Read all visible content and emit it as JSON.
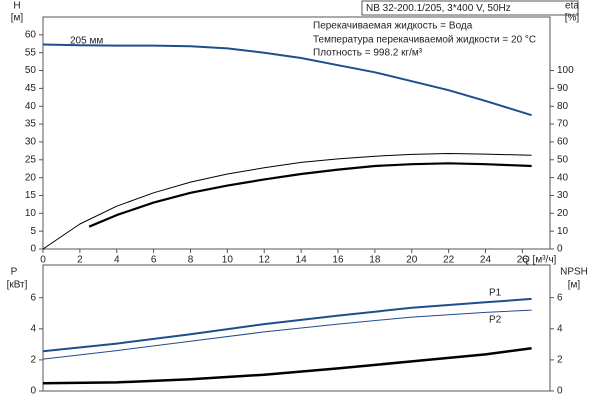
{
  "header": "NB 32-200.1/205, 3*400 V, 50Hz",
  "annotations": [
    "Перекачиваемая жидкость = Вода",
    "Температура перекачиваемой жидкости = 20 °C",
    "Плотность = 998.2 кг/м³"
  ],
  "chart_data": [
    {
      "type": "line",
      "ylabel": "H",
      "yunit": "[м]",
      "y2label": "eta",
      "y2unit": "[%]",
      "xlabel": "Q [м³/ч]",
      "xlim": [
        0,
        27.5
      ],
      "xticks": [
        0,
        2,
        4,
        6,
        8,
        10,
        12,
        14,
        16,
        18,
        20,
        22,
        24,
        26
      ],
      "ylim": [
        0,
        65
      ],
      "yticks": [
        0,
        5,
        10,
        15,
        20,
        25,
        30,
        35,
        40,
        45,
        50,
        55,
        60
      ],
      "y2lim": [
        0,
        130
      ],
      "y2ticks": [
        0,
        10,
        20,
        30,
        40,
        50,
        60,
        70,
        80,
        90,
        100
      ],
      "series": [
        {
          "name": "205 мм",
          "color": "#1f4e8c",
          "width": 2,
          "x": [
            0,
            2,
            4,
            6,
            8,
            10,
            12,
            14,
            16,
            18,
            20,
            22,
            24,
            26.5
          ],
          "values": [
            57.3,
            57.1,
            57,
            57,
            56.8,
            56.2,
            55,
            53.5,
            51.5,
            49.5,
            47,
            44.5,
            41.5,
            37.5
          ]
        },
        {
          "color": "#000000",
          "width": 1,
          "axis": "y2",
          "x": [
            0,
            2,
            4,
            6,
            8,
            10,
            12,
            14,
            16,
            18,
            20,
            22,
            24,
            26.5
          ],
          "values": [
            0,
            14,
            24,
            31.5,
            37.5,
            42,
            45.5,
            48.5,
            50.5,
            52,
            53,
            53.5,
            53.2,
            52.5
          ]
        },
        {
          "color": "#000000",
          "width": 2.2,
          "axis": "y2",
          "x": [
            2.5,
            4,
            6,
            8,
            10,
            12,
            14,
            16,
            18,
            20,
            22,
            24,
            26.5
          ],
          "values": [
            12.5,
            19,
            26,
            31.5,
            35.5,
            39,
            42,
            44.5,
            46.5,
            47.5,
            48,
            47.5,
            46.5
          ]
        }
      ]
    },
    {
      "type": "line",
      "ylabel": "P",
      "yunit": "[кВт]",
      "y2label": "NPSH",
      "y2unit": "[м]",
      "xlim": [
        0,
        27.5
      ],
      "ylim": [
        0,
        8.1
      ],
      "yticks": [
        0,
        2,
        4,
        6
      ],
      "y2lim": [
        0,
        8.1
      ],
      "y2ticks": [
        0,
        2,
        4,
        6
      ],
      "series": [
        {
          "name": "P1",
          "color": "#1f4e8c",
          "width": 2,
          "x": [
            0,
            4,
            8,
            12,
            16,
            20,
            24,
            26.5
          ],
          "values": [
            2.55,
            3.05,
            3.65,
            4.3,
            4.85,
            5.35,
            5.7,
            5.92
          ]
        },
        {
          "name": "P2",
          "color": "#1f4e8c",
          "width": 1,
          "x": [
            0,
            4,
            8,
            12,
            16,
            20,
            24,
            26.5
          ],
          "values": [
            2.05,
            2.6,
            3.2,
            3.8,
            4.3,
            4.75,
            5.05,
            5.2
          ]
        },
        {
          "color": "#000000",
          "width": 2.5,
          "axis": "y2",
          "x": [
            0,
            4,
            8,
            12,
            16,
            20,
            24,
            26.5
          ],
          "values": [
            0.5,
            0.55,
            0.75,
            1.05,
            1.45,
            1.9,
            2.35,
            2.75
          ]
        }
      ]
    }
  ]
}
